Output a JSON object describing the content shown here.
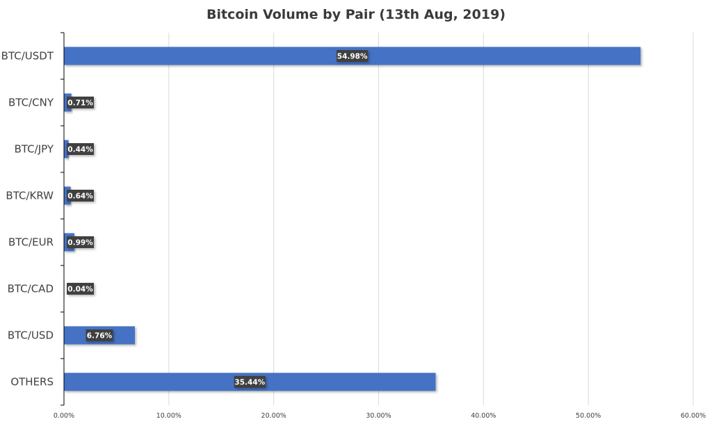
{
  "chart_data": {
    "type": "bar",
    "orientation": "horizontal",
    "title": "Bitcoin Volume by Pair (13th Aug, 2019)",
    "categories": [
      "BTC/USDT",
      "BTC/CNY",
      "BTC/JPY",
      "BTC/KRW",
      "BTC/EUR",
      "BTC/CAD",
      "BTC/USD",
      "OTHERS"
    ],
    "values": [
      54.98,
      0.71,
      0.44,
      0.64,
      0.99,
      0.04,
      6.76,
      35.44
    ],
    "data_labels": [
      "54.98%",
      "0.71%",
      "0.44%",
      "0.64%",
      "0.99%",
      "0.04%",
      "6.76%",
      "35.44%"
    ],
    "xlabel": "",
    "ylabel": "",
    "xlim": [
      0,
      60
    ],
    "x_ticks": [
      0,
      10,
      20,
      30,
      40,
      50,
      60
    ],
    "x_tick_labels": [
      "0.00%",
      "10.00%",
      "20.00%",
      "30.00%",
      "40.00%",
      "50.00%",
      "60.00%"
    ],
    "grid": true,
    "legend": "none",
    "bar_color": "#4472C4",
    "label_box_color": "#404040",
    "label_text_color": "#FFFFFF",
    "grid_color": "#D9D9D9",
    "axis_color": "#000000"
  }
}
